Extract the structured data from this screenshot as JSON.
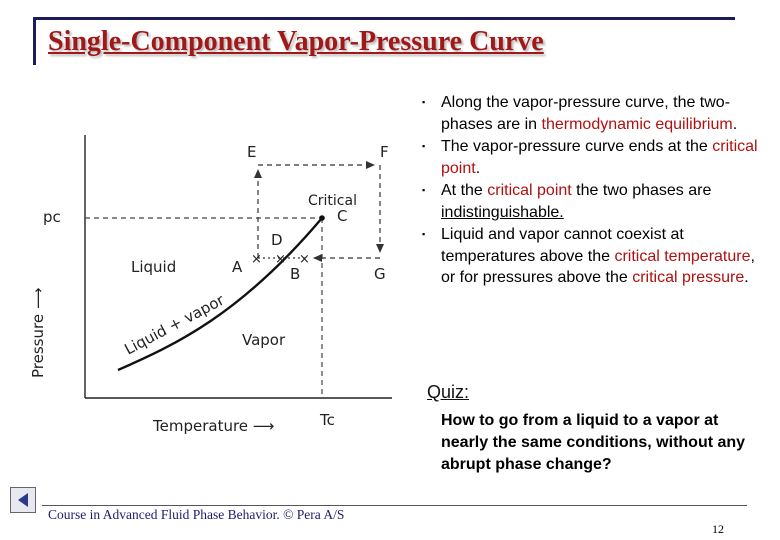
{
  "title": "Single-Component Vapor-Pressure Curve",
  "bullets": [
    {
      "runs": [
        {
          "text": "Along the vapor-pressure curve, the two-phases are in "
        },
        {
          "text": "thermodynamic equilibrium",
          "style": "red"
        },
        {
          "text": "."
        }
      ]
    },
    {
      "runs": [
        {
          "text": "The vapor-pressure curve ends at the "
        },
        {
          "text": "critical point",
          "style": "red"
        },
        {
          "text": "."
        }
      ]
    },
    {
      "runs": [
        {
          "text": "At the "
        },
        {
          "text": "critical point",
          "style": "red"
        },
        {
          "text": " the two phases are "
        },
        {
          "text": "indistinguishable.",
          "style": "uline"
        }
      ]
    },
    {
      "runs": [
        {
          "text": "Liquid and vapor cannot coexist at temperatures above the "
        },
        {
          "text": "critical temperature",
          "style": "red"
        },
        {
          "text": ", or for pressures above the "
        },
        {
          "text": "critical pressure",
          "style": "red"
        },
        {
          "text": "."
        }
      ]
    }
  ],
  "quiz": {
    "label": "Quiz:",
    "question": "How to go from a liquid to a vapor at nearly the same conditions, without any abrupt phase change?"
  },
  "diagram": {
    "pc_label": "pc",
    "tc_label": "Tc",
    "pressure_axis": "Pressure",
    "temperature_axis": "Temperature",
    "liquid": "Liquid",
    "vapor": "Vapor",
    "liquid_vapor": "Liquid + vapor",
    "critical": "Critical",
    "points": {
      "A": "A",
      "B": "B",
      "C": "C",
      "D": "D",
      "E": "E",
      "F": "F",
      "G": "G"
    }
  },
  "footer": "Course in Advanced Fluid Phase Behavior. © Pera A/S",
  "page_number": "12"
}
